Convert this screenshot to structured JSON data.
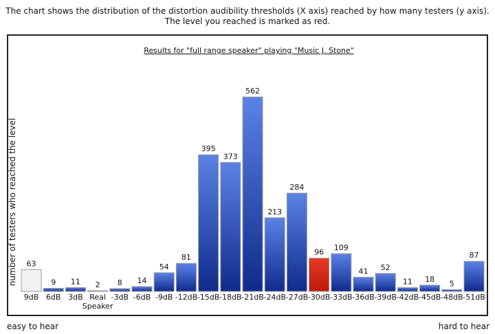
{
  "intro": {
    "line1": "The chart shows the distribution of the distortion audibility thresholds (X axis) reached by how many testers (y axis).",
    "line2": "The level you reached is marked as red."
  },
  "footer": {
    "left": "easy to hear",
    "right": "hard to hear"
  },
  "colors": {
    "bar_blue": "#2346b8",
    "bar_highlight": "#d62010",
    "bar_reference": "#f2f2f2"
  },
  "chart_data": {
    "type": "bar",
    "title": "Results for \"full range speaker\" playing \"Music J. Stone\"",
    "ylabel": "number of testers who reached the level",
    "xlabel": "",
    "categories": [
      "9dB",
      "6dB",
      "3dB",
      "Real Speaker",
      "-3dB",
      "-6dB",
      "-9dB",
      "-12dB",
      "-15dB",
      "-18dB",
      "-21dB",
      "-24dB",
      "-27dB",
      "-30dB",
      "-33dB",
      "-36dB",
      "-39dB",
      "-42dB",
      "-45dB",
      "-48dB",
      "-51dB"
    ],
    "values": [
      63,
      9,
      11,
      2,
      8,
      14,
      54,
      81,
      395,
      373,
      562,
      213,
      284,
      96,
      109,
      41,
      52,
      11,
      18,
      5,
      87
    ],
    "highlight_category": "-30dB",
    "reference_category": "9dB",
    "ylim": [
      0,
      600
    ]
  }
}
